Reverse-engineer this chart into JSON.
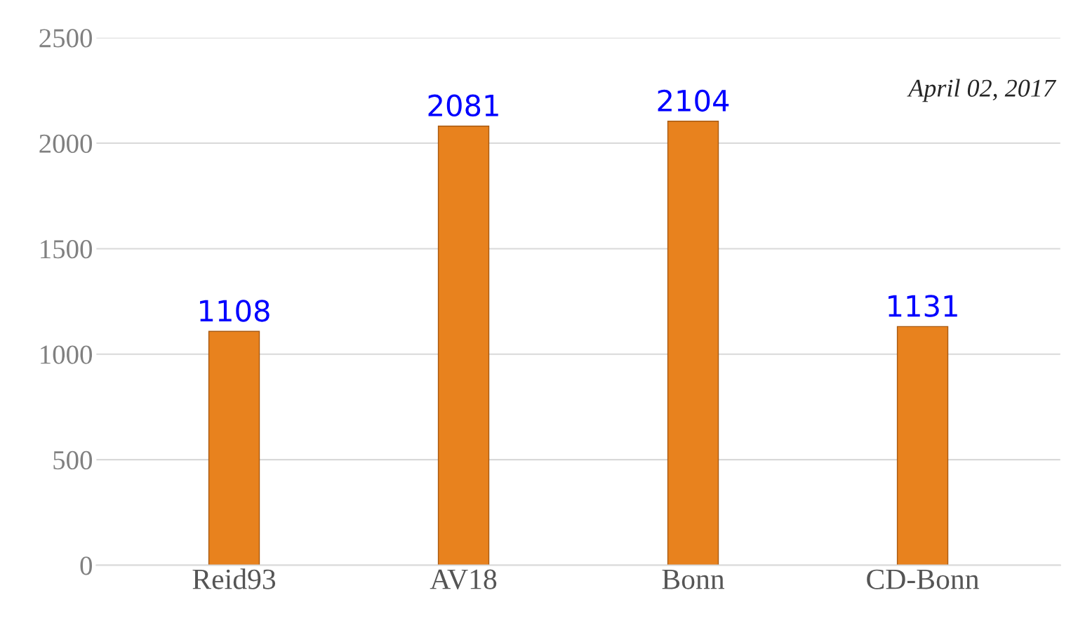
{
  "chart_data": {
    "type": "bar",
    "categories": [
      "Reid93",
      "AV18",
      "Bonn",
      "CD-Bonn"
    ],
    "values": [
      1108,
      2081,
      2104,
      1131
    ],
    "color": "#e8821e",
    "ylim": [
      0,
      2500
    ],
    "yticks": [
      0,
      500,
      1000,
      1500,
      2000,
      2500
    ],
    "grid": "y",
    "data_labels": true,
    "annotations": [
      "April 02, 2017"
    ]
  }
}
